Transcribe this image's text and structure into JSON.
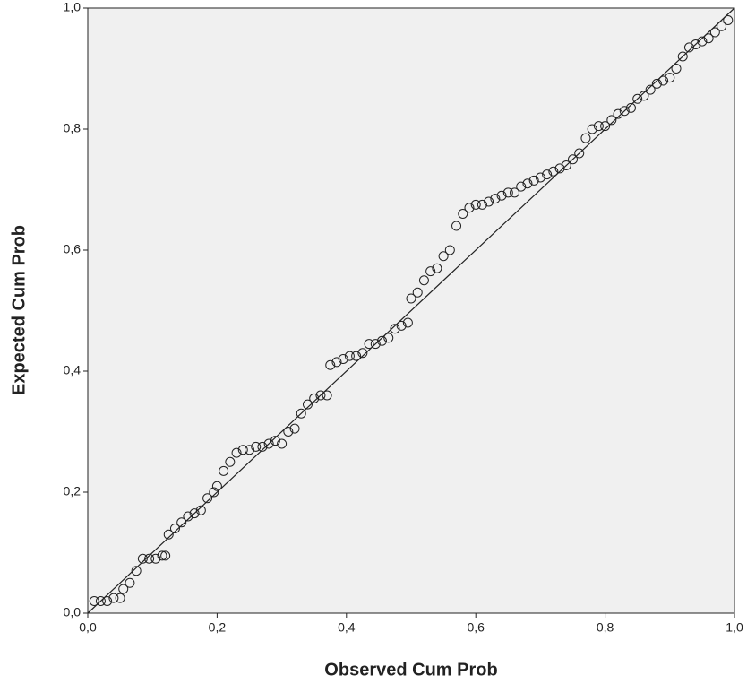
{
  "chart_data": {
    "type": "scatter",
    "x_label": "Observed Cum Prob",
    "y_label": "Expected Cum Prob",
    "xlim": [
      0,
      1
    ],
    "ylim": [
      0,
      1
    ],
    "xticks": [
      {
        "value": 0,
        "label": "0,0"
      },
      {
        "value": 0.2,
        "label": "0,2"
      },
      {
        "value": 0.4,
        "label": "0,4"
      },
      {
        "value": 0.6,
        "label": "0,6"
      },
      {
        "value": 0.8,
        "label": "0,8"
      },
      {
        "value": 1,
        "label": "1,0"
      }
    ],
    "yticks": [
      {
        "value": 0,
        "label": "0,0"
      },
      {
        "value": 0.2,
        "label": "0,2"
      },
      {
        "value": 0.4,
        "label": "0,4"
      },
      {
        "value": 0.6,
        "label": "0,6"
      },
      {
        "value": 0.8,
        "label": "0,8"
      },
      {
        "value": 1,
        "label": "1,0"
      }
    ],
    "color": "#222222",
    "x": [
      0.01,
      0.02,
      0.03,
      0.04,
      0.05,
      0.055,
      0.065,
      0.075,
      0.085,
      0.095,
      0.105,
      0.115,
      0.12,
      0.125,
      0.135,
      0.145,
      0.155,
      0.165,
      0.175,
      0.185,
      0.195,
      0.2,
      0.21,
      0.22,
      0.23,
      0.24,
      0.25,
      0.26,
      0.27,
      0.28,
      0.29,
      0.3,
      0.31,
      0.32,
      0.33,
      0.34,
      0.35,
      0.36,
      0.37,
      0.375,
      0.385,
      0.395,
      0.405,
      0.415,
      0.425,
      0.435,
      0.445,
      0.455,
      0.465,
      0.475,
      0.485,
      0.495,
      0.5,
      0.51,
      0.52,
      0.53,
      0.54,
      0.55,
      0.56,
      0.57,
      0.58,
      0.59,
      0.6,
      0.61,
      0.62,
      0.63,
      0.64,
      0.65,
      0.66,
      0.67,
      0.68,
      0.69,
      0.7,
      0.71,
      0.72,
      0.73,
      0.74,
      0.75,
      0.76,
      0.77,
      0.78,
      0.79,
      0.8,
      0.81,
      0.82,
      0.83,
      0.84,
      0.85,
      0.86,
      0.87,
      0.88,
      0.89,
      0.9,
      0.91,
      0.92,
      0.93,
      0.94,
      0.95,
      0.96,
      0.97,
      0.98,
      0.99
    ],
    "values": [
      0.02,
      0.02,
      0.02,
      0.025,
      0.025,
      0.04,
      0.05,
      0.07,
      0.09,
      0.09,
      0.09,
      0.095,
      0.095,
      0.13,
      0.14,
      0.15,
      0.16,
      0.165,
      0.17,
      0.19,
      0.2,
      0.21,
      0.235,
      0.25,
      0.265,
      0.27,
      0.27,
      0.275,
      0.275,
      0.28,
      0.285,
      0.28,
      0.3,
      0.305,
      0.33,
      0.345,
      0.355,
      0.36,
      0.36,
      0.41,
      0.415,
      0.42,
      0.425,
      0.425,
      0.43,
      0.445,
      0.445,
      0.45,
      0.455,
      0.47,
      0.475,
      0.48,
      0.52,
      0.53,
      0.55,
      0.565,
      0.57,
      0.59,
      0.6,
      0.64,
      0.66,
      0.67,
      0.675,
      0.675,
      0.68,
      0.685,
      0.69,
      0.695,
      0.695,
      0.705,
      0.71,
      0.715,
      0.72,
      0.725,
      0.73,
      0.735,
      0.74,
      0.75,
      0.76,
      0.785,
      0.8,
      0.805,
      0.805,
      0.815,
      0.825,
      0.83,
      0.835,
      0.85,
      0.855,
      0.865,
      0.875,
      0.88,
      0.885,
      0.9,
      0.92,
      0.935,
      0.94,
      0.945,
      0.95,
      0.96,
      0.97,
      0.98
    ]
  }
}
